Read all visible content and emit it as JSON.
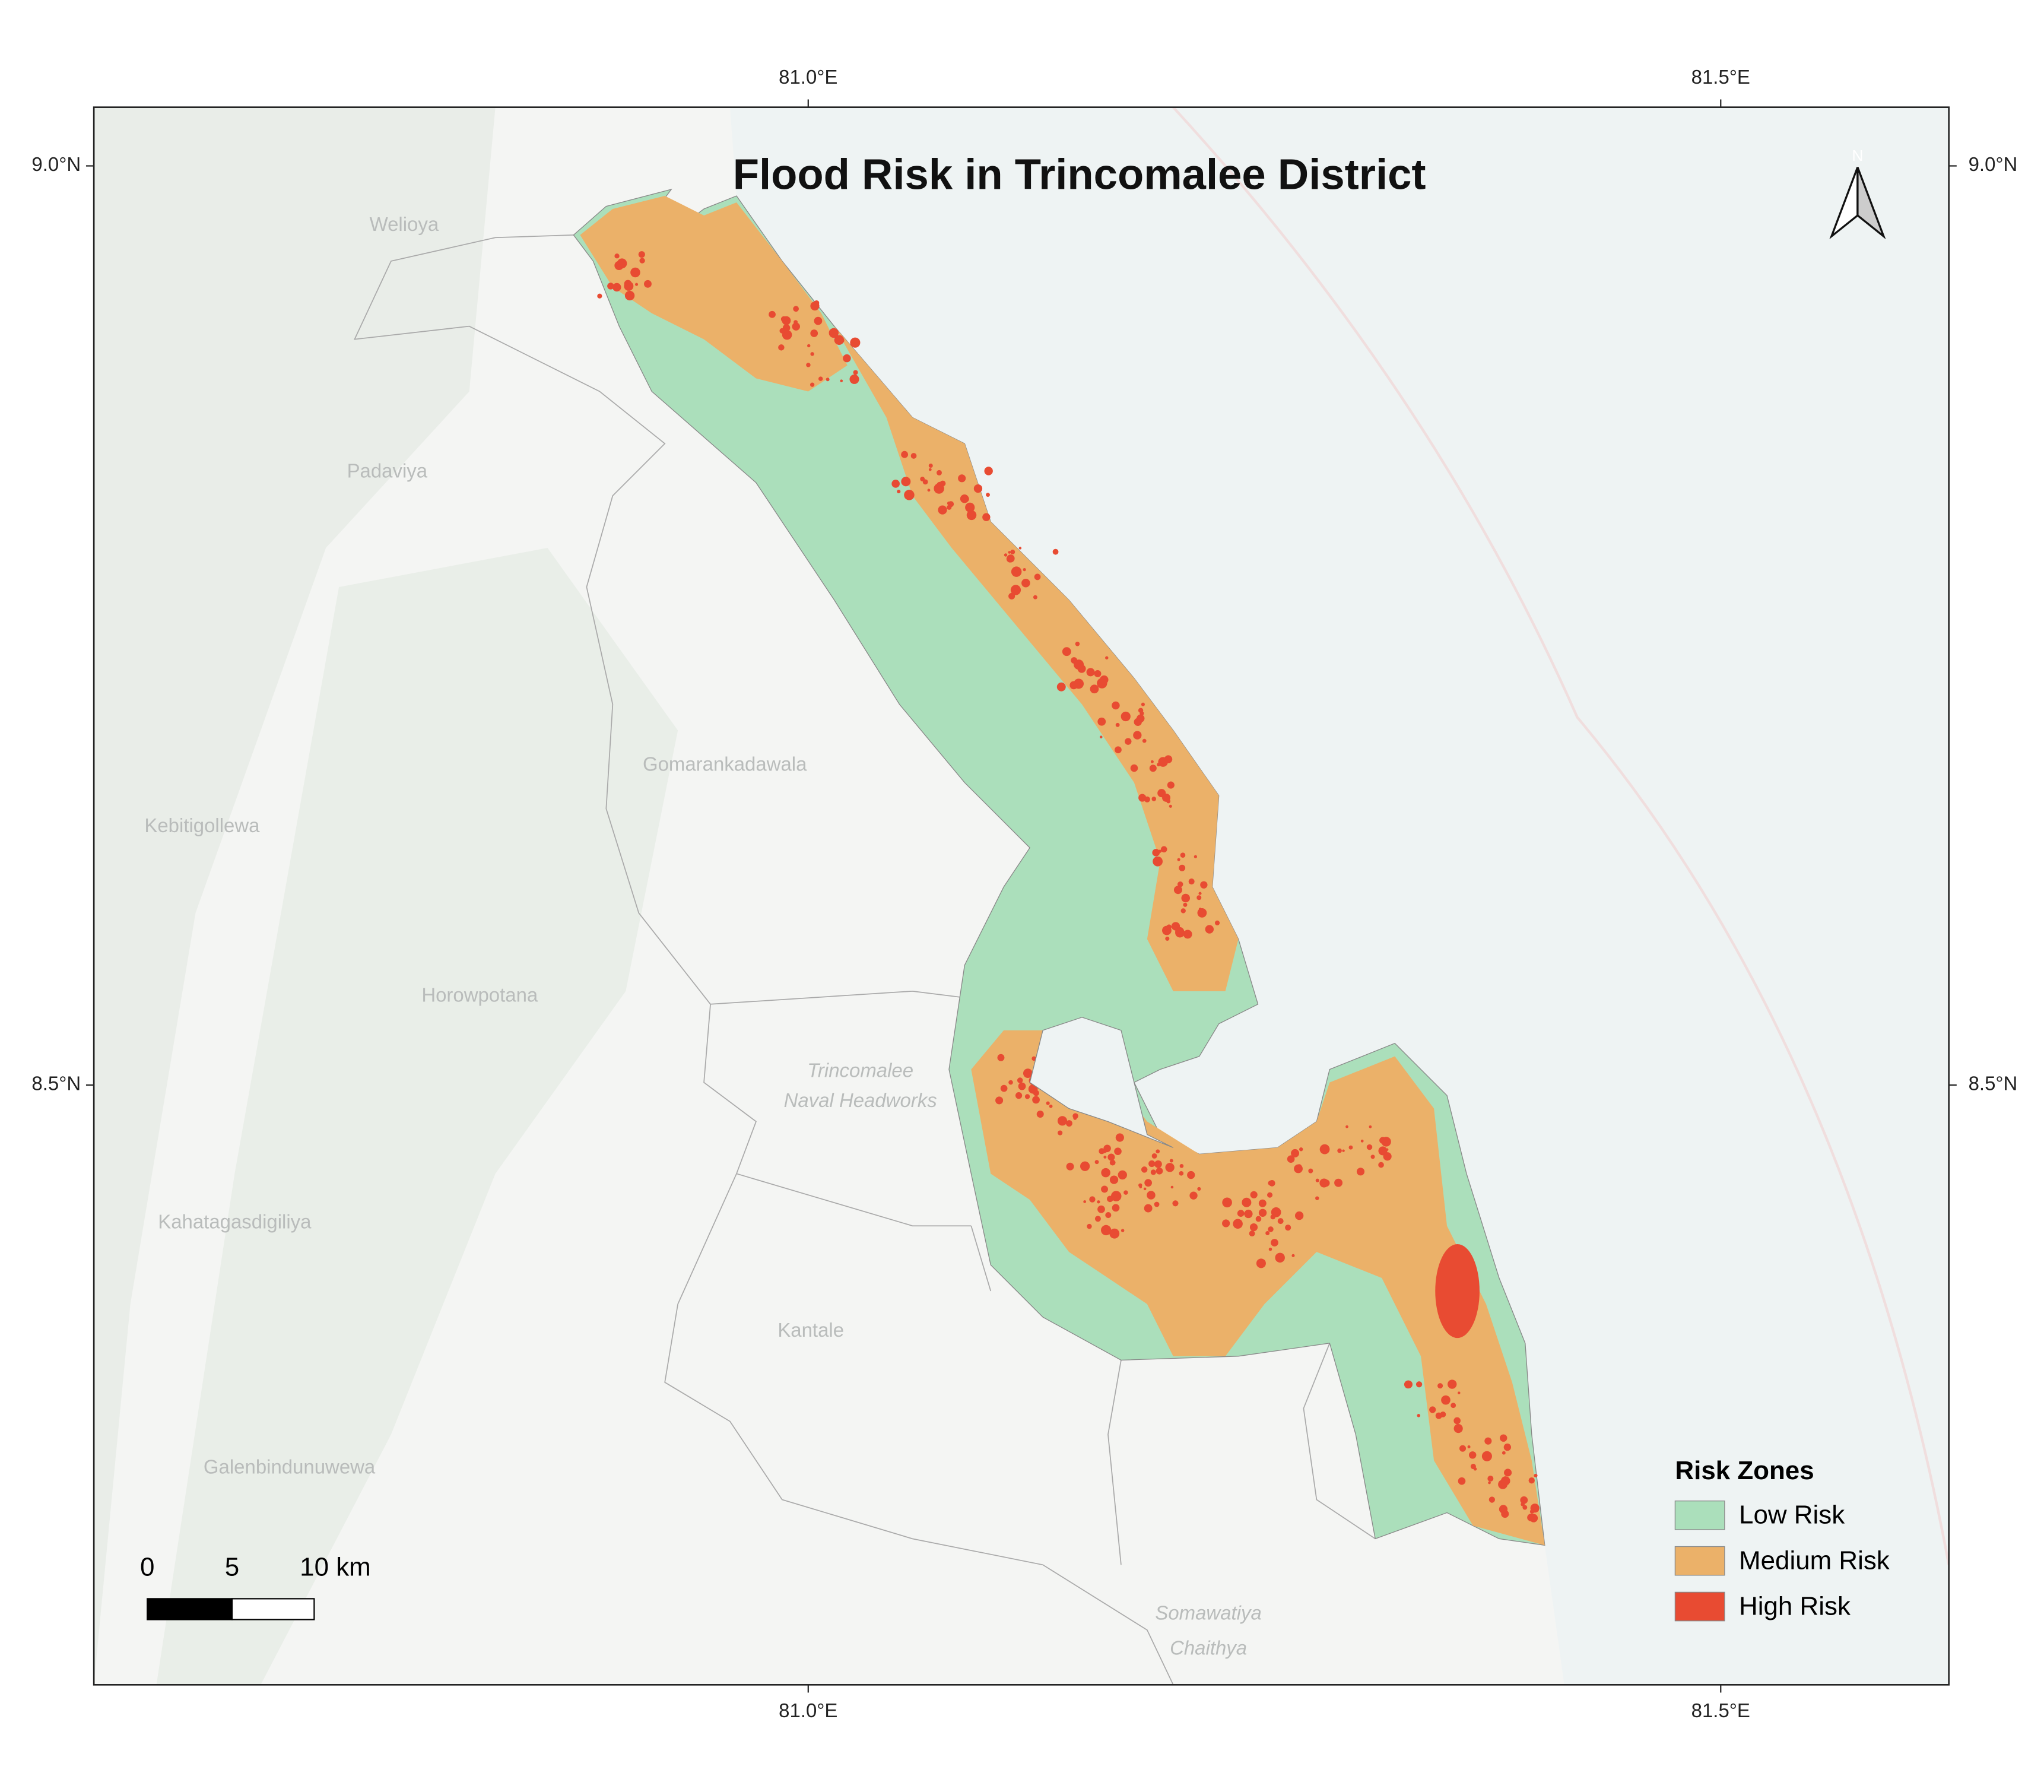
{
  "title": "Flood Risk in Trincomalee District",
  "graticule": {
    "longitudes": [
      {
        "value": 81.0,
        "label": "81.0°E"
      },
      {
        "value": 81.5,
        "label": "81.5°E"
      }
    ],
    "latitudes": [
      {
        "value": 9.0,
        "label": "9.0°N"
      },
      {
        "value": 8.5,
        "label": "8.5°N"
      }
    ]
  },
  "north_arrow": "N",
  "legend": {
    "title": "Risk Zones",
    "items": [
      {
        "label": "Low Risk",
        "color": "#abdfbb"
      },
      {
        "label": "Medium Risk",
        "color": "#ebb169"
      },
      {
        "label": "High Risk",
        "color": "#e84b32"
      }
    ]
  },
  "scale_bar": {
    "labels": [
      "0",
      "5",
      "10 km"
    ]
  },
  "places": [
    "Welioya",
    "Padaviya",
    "Gomarankadawala",
    "Kebitigollewa",
    "Horowpotana",
    "Trincomalee",
    "Naval Headworks",
    "Kahatagasdigiliya",
    "Kantale",
    "Galenbindunuwewa",
    "Somawatiya",
    "Chaithya"
  ]
}
